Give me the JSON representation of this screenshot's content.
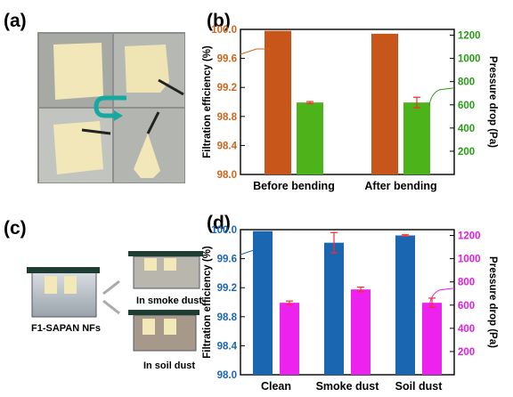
{
  "panels": {
    "a": {
      "label": "(a)"
    },
    "b": {
      "label": "(b)"
    },
    "c": {
      "label": "(c)",
      "tank_main": "F1-SAPAN NFs",
      "tank_smoke": "In smoke dust",
      "tank_soil": "In soil dust"
    },
    "d": {
      "label": "(d)"
    }
  },
  "colors": {
    "orange_bar": "#c8561a",
    "green_bar": "#4cb31a",
    "green_axis": "#2a9a16",
    "blue_bar": "#1a66b0",
    "blue_axis": "#1a66b0",
    "magenta_bar": "#ee22ee",
    "magenta_axis": "#e01ee0",
    "error_red": "#ff2a2a"
  },
  "chart_data": [
    {
      "id": "b",
      "type": "bar",
      "categories": [
        "Before bending",
        "After bending"
      ],
      "left_axis": {
        "label": "Filtration efficiency (%)",
        "ylim": [
          98.0,
          100.0
        ],
        "ticks": [
          "98.0",
          "98.4",
          "98.8",
          "99.2",
          "99.6",
          "100.0"
        ]
      },
      "right_axis": {
        "label": "Pressure drop (Pa)",
        "ylim": [
          0,
          1250
        ],
        "ticks": [
          "200",
          "400",
          "600",
          "800",
          "1000",
          "1200"
        ]
      },
      "series": [
        {
          "axis": "left",
          "values": [
            99.98,
            99.94
          ],
          "errors": [
            0,
            0
          ]
        },
        {
          "axis": "right",
          "values": [
            620,
            620
          ],
          "errors": [
            8,
            45
          ]
        }
      ]
    },
    {
      "id": "d",
      "type": "bar",
      "categories": [
        "Clean",
        "Smoke dust",
        "Soil dust"
      ],
      "left_axis": {
        "label": "Filtration efficiency (%)",
        "ylim": [
          98.0,
          100.0
        ],
        "ticks": [
          "98.0",
          "98.4",
          "98.8",
          "99.2",
          "99.6",
          "100.0"
        ]
      },
      "right_axis": {
        "label": "Pressure drop (Pa)",
        "ylim": [
          0,
          1250
        ],
        "ticks": [
          "200",
          "400",
          "600",
          "800",
          "1000",
          "1200"
        ]
      },
      "series": [
        {
          "axis": "left",
          "values": [
            99.98,
            99.82,
            99.92
          ],
          "errors": [
            0,
            0.14,
            0.01
          ]
        },
        {
          "axis": "right",
          "values": [
            620,
            735,
            620
          ],
          "errors": [
            15,
            20,
            40
          ]
        }
      ]
    }
  ]
}
